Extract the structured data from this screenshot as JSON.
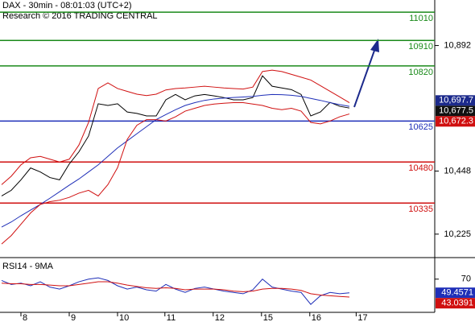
{
  "chart_data": [
    {
      "type": "line",
      "title": "DAX - 30min - 08:01:03 (UTC+2)",
      "subtitle": "Research © 2016 TRADING CENTRAL",
      "x": [
        0,
        1,
        2,
        3,
        4,
        5,
        6,
        7,
        8,
        9,
        10,
        11,
        12,
        13,
        14,
        15,
        16,
        17,
        18,
        19,
        20,
        21,
        22,
        23,
        24,
        25,
        26,
        27,
        28,
        29,
        30,
        31,
        32,
        33,
        34,
        35,
        36
      ],
      "xlim": [
        0,
        45
      ],
      "ylim": [
        10142,
        11053
      ],
      "yticks": [
        {
          "value": 10892,
          "label": "10,892"
        },
        {
          "value": 10448,
          "label": "10,448"
        },
        {
          "value": 10225,
          "label": "10,225"
        }
      ],
      "series": [
        {
          "color": "#000000",
          "values": [
            10360,
            10380,
            10417,
            10459,
            10445,
            10425,
            10417,
            10473,
            10516,
            10572,
            10686,
            10680,
            10686,
            10657,
            10652,
            10643,
            10643,
            10700,
            10719,
            10700,
            10714,
            10719,
            10714,
            10708,
            10700,
            10700,
            10708,
            10785,
            10748,
            10742,
            10736,
            10719,
            10643,
            10657,
            10691,
            10677,
            10671
          ]
        },
        {
          "color": "#1f2fb8",
          "values": [
            10250,
            10268,
            10290,
            10310,
            10330,
            10352,
            10375,
            10398,
            10420,
            10445,
            10470,
            10500,
            10530,
            10555,
            10580,
            10605,
            10630,
            10648,
            10665,
            10680,
            10690,
            10698,
            10703,
            10706,
            10708,
            10710,
            10712,
            10716,
            10719,
            10718,
            10716,
            10712,
            10705,
            10698,
            10690,
            10683,
            10677
          ]
        },
        {
          "color": "#d01010",
          "values": [
            10400,
            10430,
            10470,
            10495,
            10500,
            10490,
            10480,
            10490,
            10540,
            10620,
            10740,
            10760,
            10740,
            10730,
            10720,
            10715,
            10720,
            10735,
            10740,
            10742,
            10745,
            10748,
            10745,
            10742,
            10740,
            10738,
            10745,
            10800,
            10805,
            10800,
            10790,
            10780,
            10770,
            10750,
            10730,
            10710,
            10690
          ]
        },
        {
          "color": "#d01010",
          "values": [
            10190,
            10220,
            10260,
            10300,
            10330,
            10340,
            10345,
            10355,
            10370,
            10380,
            10360,
            10400,
            10460,
            10560,
            10610,
            10630,
            10630,
            10625,
            10640,
            10660,
            10670,
            10680,
            10685,
            10688,
            10690,
            10690,
            10685,
            10680,
            10670,
            10665,
            10670,
            10660,
            10620,
            10615,
            10625,
            10640,
            10650
          ]
        }
      ],
      "levels": [
        {
          "value": 11010,
          "color": "#1a8a1a"
        },
        {
          "value": 10910,
          "color": "#1a8a1a"
        },
        {
          "value": 10820,
          "color": "#1a8a1a"
        },
        {
          "value": 10625,
          "color": "#1f2fb8"
        },
        {
          "value": 10480,
          "color": "#d01010"
        },
        {
          "value": 10335,
          "color": "#d01010"
        }
      ],
      "price_tags": [
        {
          "value": 10697.7,
          "label": "10,697.7",
          "color": "#1c2a8c"
        },
        {
          "value": 10677.5,
          "label": "10,677.5",
          "color": "#111111"
        },
        {
          "value": 10672.3,
          "label": "10,672.3",
          "color": "#d01010"
        }
      ]
    },
    {
      "type": "line",
      "title": "RSI14 - 9MA",
      "x": [
        0,
        1,
        2,
        3,
        4,
        5,
        6,
        7,
        8,
        9,
        10,
        11,
        12,
        13,
        14,
        15,
        16,
        17,
        18,
        19,
        20,
        21,
        22,
        23,
        24,
        25,
        26,
        27,
        28,
        29,
        30,
        31,
        32,
        33,
        34,
        35,
        36
      ],
      "xlim": [
        0,
        45
      ],
      "ylim": [
        20,
        100
      ],
      "yticks": [
        70
      ],
      "xticks": [
        {
          "value": 2,
          "label": "8"
        },
        {
          "value": 7,
          "label": "9"
        },
        {
          "value": 12,
          "label": "10"
        },
        {
          "value": 16.9,
          "label": "11"
        },
        {
          "value": 21.9,
          "label": "12"
        },
        {
          "value": 26.9,
          "label": "15"
        },
        {
          "value": 31.9,
          "label": "16"
        },
        {
          "value": 36.7,
          "label": "17"
        }
      ],
      "series": [
        {
          "color": "#1f2fb8",
          "values": [
            68,
            62,
            64,
            60,
            66,
            58,
            55,
            60,
            66,
            70,
            72,
            68,
            60,
            55,
            58,
            54,
            52,
            62,
            55,
            50,
            56,
            58,
            55,
            52,
            50,
            48,
            54,
            70,
            58,
            55,
            52,
            50,
            32,
            45,
            50,
            48,
            49.4571
          ]
        },
        {
          "color": "#d01010",
          "values": [
            64,
            63,
            63,
            62,
            62,
            61,
            60,
            60,
            62,
            64,
            66,
            66,
            64,
            61,
            59,
            57,
            56,
            57,
            56,
            54,
            55,
            55,
            55,
            54,
            52,
            51,
            52,
            55,
            56,
            56,
            55,
            53,
            48,
            46,
            45,
            44,
            43.0391
          ]
        }
      ]
    }
  ]
}
